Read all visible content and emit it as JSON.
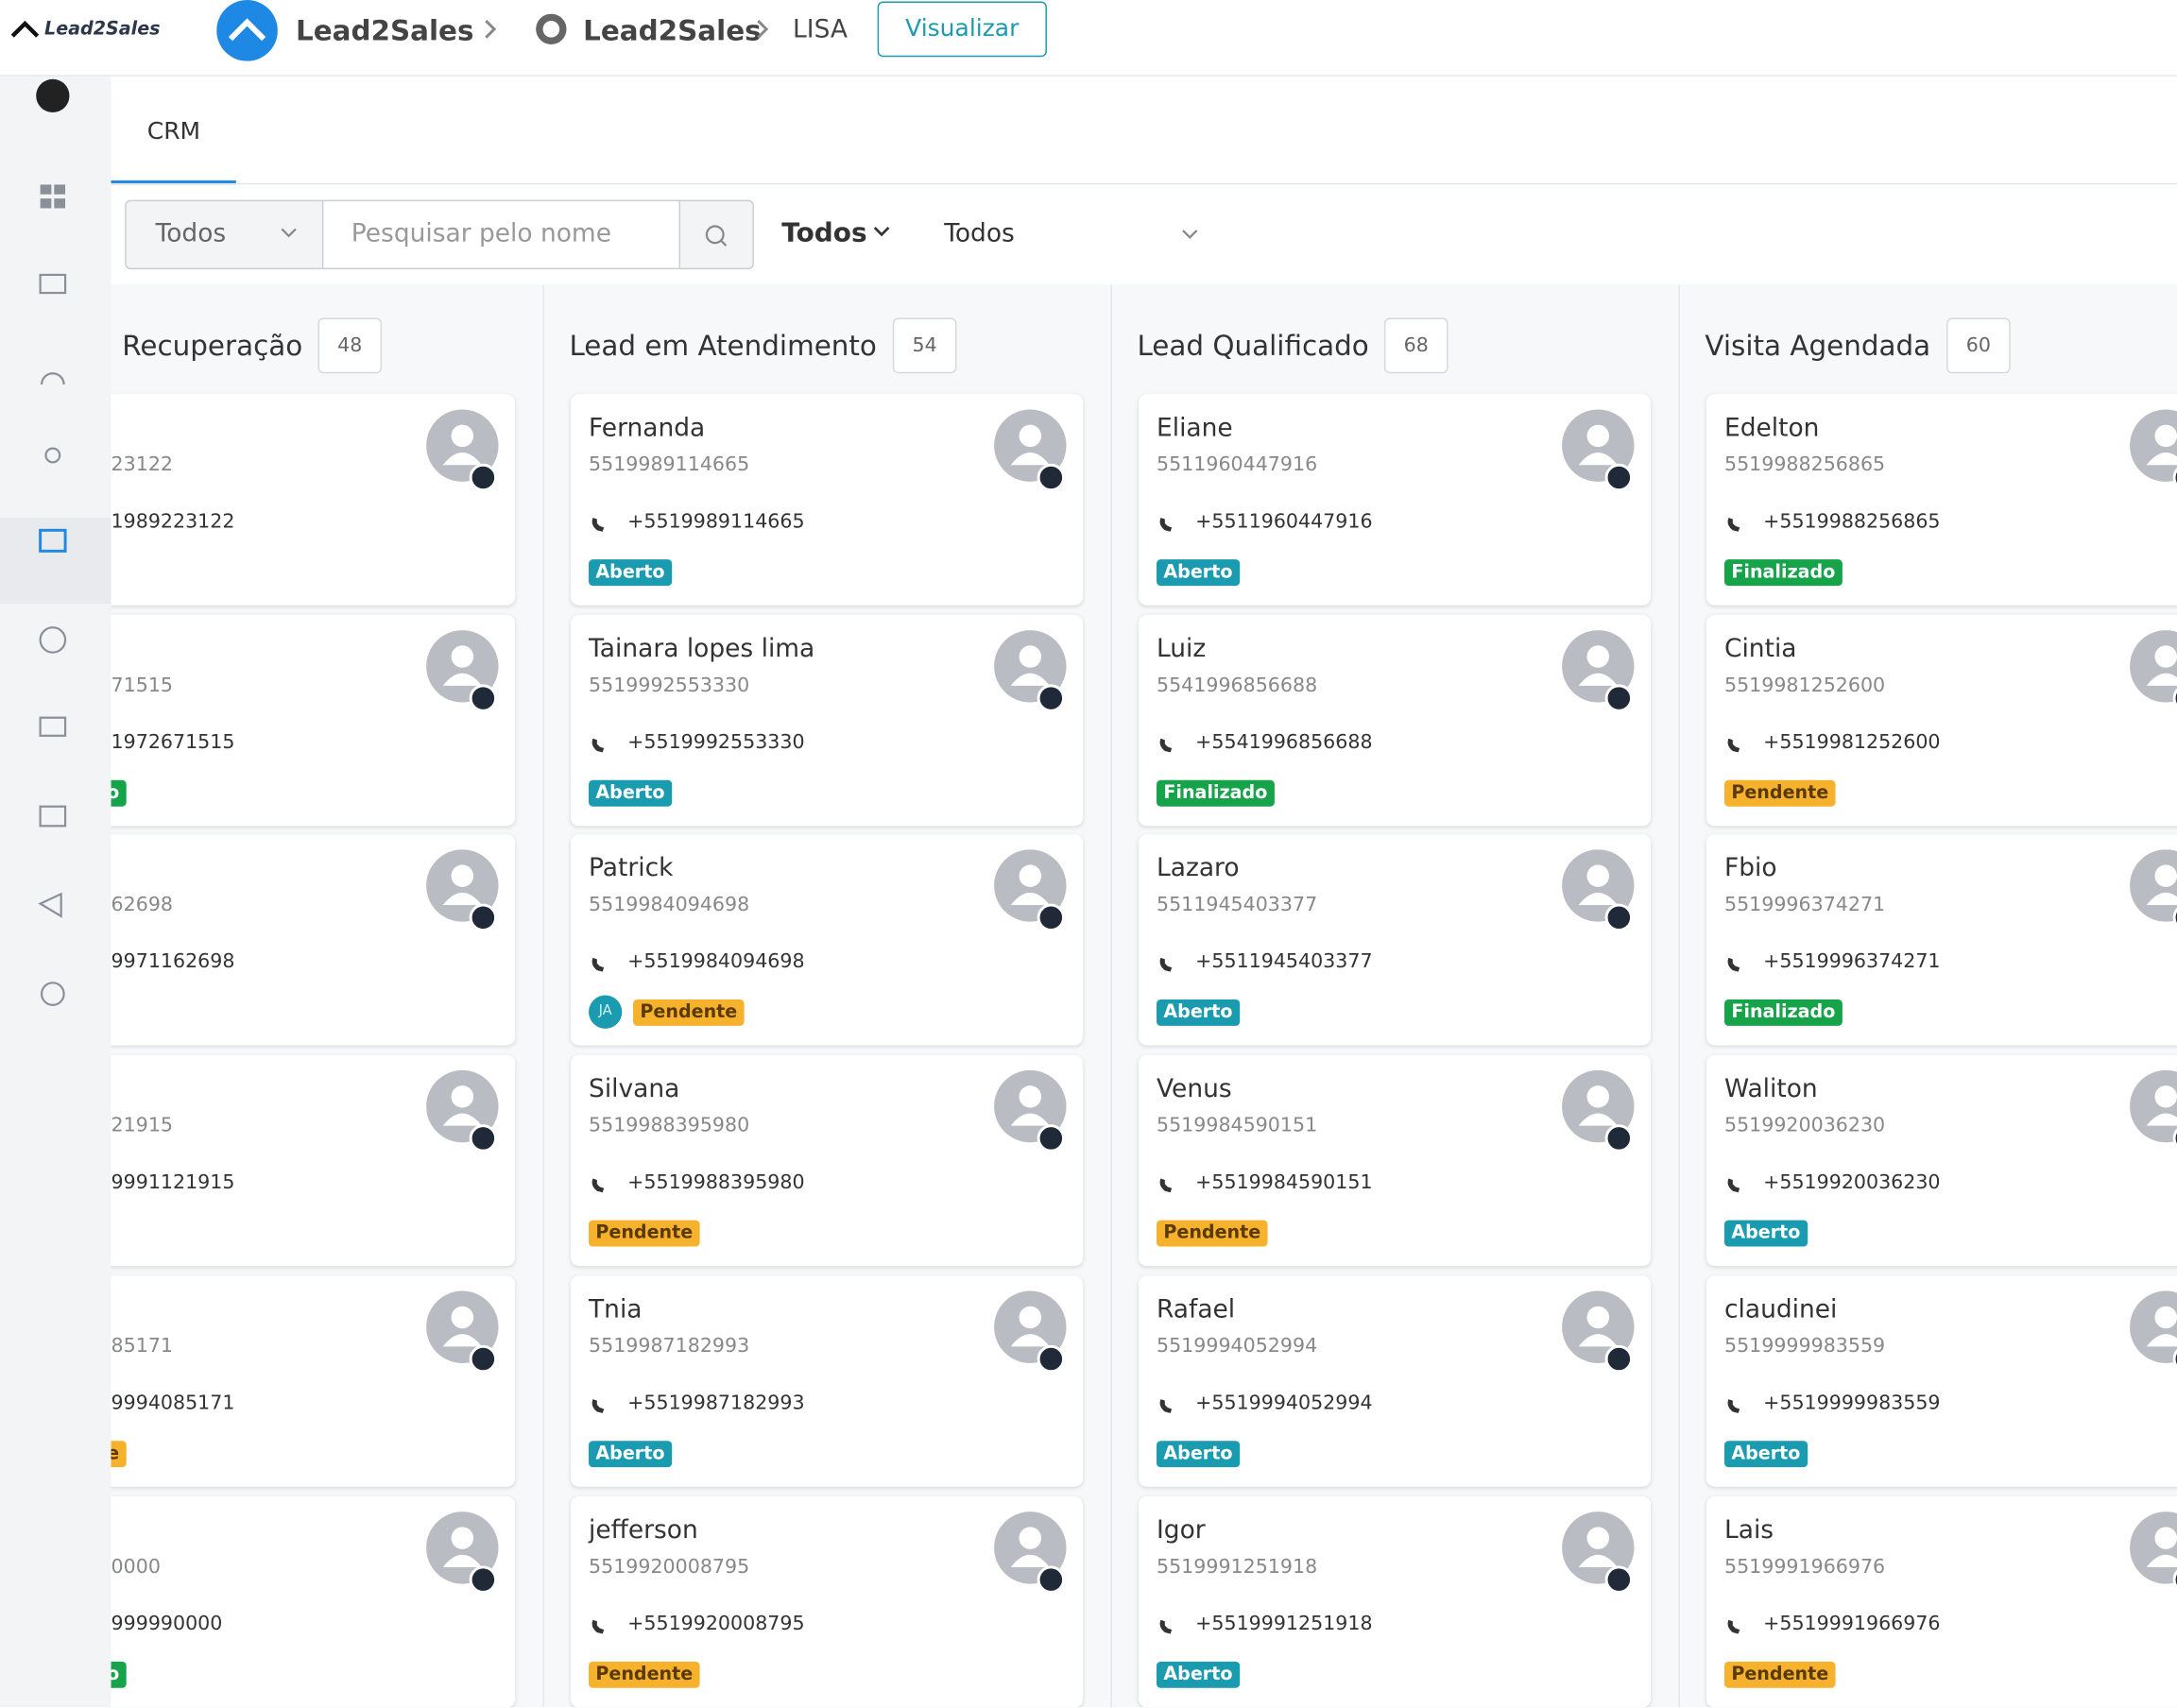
{
  "header": {
    "logo": "Lead2Sales",
    "workspace": "Lead2Sales",
    "channel": "Lead2Sales",
    "page": "LISA",
    "button": "Visualizar"
  },
  "tabs": [
    "CRM"
  ],
  "filters": {
    "type_select": "Todos",
    "search_placeholder": "Pesquisar pelo nome",
    "status_select": "Todos",
    "owner_select": "Todos"
  },
  "columns": [
    {
      "title": "Recuperação",
      "count": "48",
      "cards": [
        {
          "phone": "23122",
          "phone_display": "1989223122"
        },
        {
          "phone": "71515",
          "phone_display": "1972671515",
          "status": "o",
          "status_kind": "finalizado"
        },
        {
          "phone": "62698",
          "phone_display": "9971162698"
        },
        {
          "phone": "21915",
          "phone_display": "9991121915"
        },
        {
          "phone": "85171",
          "phone_display": "9994085171",
          "status": "e",
          "status_kind": "pendente"
        },
        {
          "phone": "0000",
          "phone_display": "999990000",
          "status": "o",
          "status_kind": "finalizado"
        }
      ]
    },
    {
      "title": "Lead em Atendimento",
      "count": "54",
      "cards": [
        {
          "name": "Fernanda",
          "phone": "5519989114665",
          "phone_display": "+5519989114665",
          "status": "Aberto"
        },
        {
          "name": "Tainara lopes lima",
          "phone": "5519992553330",
          "phone_display": "+5519992553330",
          "status": "Aberto"
        },
        {
          "name": "Patrick",
          "phone": "5519984094698",
          "phone_display": "+5519984094698",
          "assignee": "JA",
          "status": "Pendente"
        },
        {
          "name": "Silvana",
          "phone": "5519988395980",
          "phone_display": "+5519988395980",
          "status": "Pendente"
        },
        {
          "name": "Tnia",
          "phone": "5519987182993",
          "phone_display": "+5519987182993",
          "status": "Aberto"
        },
        {
          "name": "jefferson",
          "phone": "5519920008795",
          "phone_display": "+5519920008795",
          "status": "Pendente"
        }
      ]
    },
    {
      "title": "Lead Qualificado",
      "count": "68",
      "cards": [
        {
          "name": "Eliane",
          "phone": "5511960447916",
          "phone_display": "+5511960447916",
          "status": "Aberto"
        },
        {
          "name": "Luiz",
          "phone": "5541996856688",
          "phone_display": "+5541996856688",
          "status": "Finalizado"
        },
        {
          "name": "Lazaro",
          "phone": "5511945403377",
          "phone_display": "+5511945403377",
          "status": "Aberto"
        },
        {
          "name": "Venus",
          "phone": "5519984590151",
          "phone_display": "+5519984590151",
          "status": "Pendente"
        },
        {
          "name": "Rafael",
          "phone": "5519994052994",
          "phone_display": "+5519994052994",
          "status": "Aberto"
        },
        {
          "name": "Igor",
          "phone": "5519991251918",
          "phone_display": "+5519991251918",
          "status": "Aberto"
        }
      ]
    },
    {
      "title": "Visita Agendada",
      "count": "60",
      "cards": [
        {
          "name": "Edelton",
          "phone": "5519988256865",
          "phone_display": "+5519988256865",
          "status": "Finalizado"
        },
        {
          "name": "Cintia",
          "phone": "5519981252600",
          "phone_display": "+5519981252600",
          "status": "Pendente"
        },
        {
          "name": "Fbio",
          "phone": "5519996374271",
          "phone_display": "+5519996374271",
          "status": "Finalizado"
        },
        {
          "name": "Waliton",
          "phone": "5519920036230",
          "phone_display": "+5519920036230",
          "status": "Aberto"
        },
        {
          "name": "claudinei",
          "phone": "5519999983559",
          "phone_display": "+5519999983559",
          "status": "Aberto"
        },
        {
          "name": "Lais",
          "phone": "5519991966976",
          "phone_display": "+5519991966976",
          "status": "Pendente"
        }
      ]
    }
  ]
}
